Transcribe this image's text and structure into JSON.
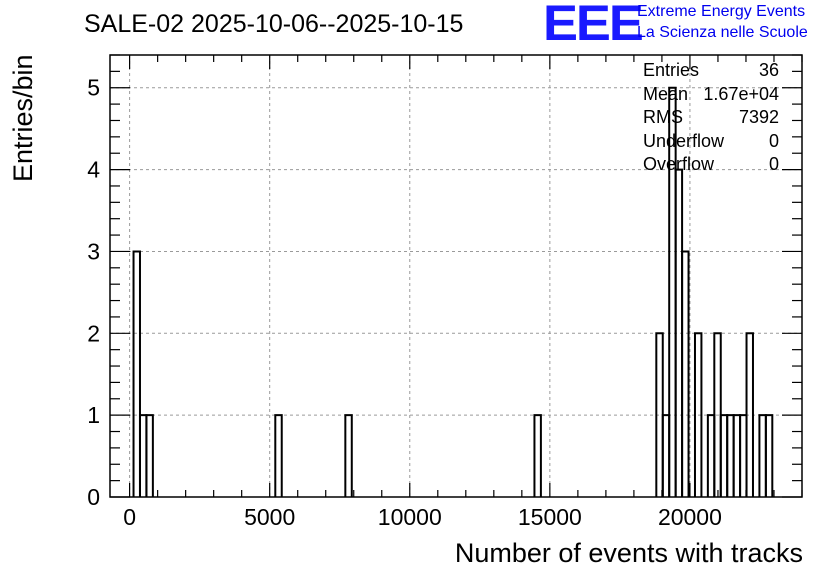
{
  "header": {
    "title": "SALE-02 2025-10-06--2025-10-15",
    "logo_text": "EEE",
    "logo_line1": "Extreme Energy Events",
    "logo_line2": "La Scienza nelle Scuole"
  },
  "stats": [
    {
      "label": "Entries",
      "value": "36"
    },
    {
      "label": "Mean",
      "value": "1.67e+04"
    },
    {
      "label": "RMS",
      "value": "7392"
    },
    {
      "label": "Underflow",
      "value": "0"
    },
    {
      "label": "Overflow",
      "value": "0"
    }
  ],
  "colors": {
    "line": "#000000",
    "grid": "#9a9a9a",
    "logo": "#1a1aff",
    "logo_text": "#0000ee"
  },
  "chart_data": {
    "type": "histogram",
    "title": "SALE-02 2025-10-06--2025-10-15",
    "xlabel": "Number of events with tracks",
    "ylabel": "Entries/bin",
    "xlim": [
      -700,
      24000
    ],
    "ylim": [
      0,
      5.4
    ],
    "bin_width": 230,
    "xticks": [
      0,
      5000,
      10000,
      15000,
      20000
    ],
    "xtick_labels": [
      "0",
      "5000",
      "10000",
      "15000",
      "20000"
    ],
    "yticks": [
      0,
      1,
      2,
      3,
      4,
      5
    ],
    "ytick_labels": [
      "0",
      "1",
      "2",
      "3",
      "4",
      "5"
    ],
    "grid": true,
    "bins": [
      {
        "x": 140,
        "count": 3
      },
      {
        "x": 370,
        "count": 1
      },
      {
        "x": 600,
        "count": 1
      },
      {
        "x": 5200,
        "count": 1
      },
      {
        "x": 7700,
        "count": 1
      },
      {
        "x": 14450,
        "count": 1
      },
      {
        "x": 18800,
        "count": 2
      },
      {
        "x": 19030,
        "count": 1
      },
      {
        "x": 19260,
        "count": 5
      },
      {
        "x": 19490,
        "count": 4
      },
      {
        "x": 19720,
        "count": 3
      },
      {
        "x": 20180,
        "count": 2
      },
      {
        "x": 20640,
        "count": 1
      },
      {
        "x": 20870,
        "count": 2
      },
      {
        "x": 21100,
        "count": 1
      },
      {
        "x": 21330,
        "count": 1
      },
      {
        "x": 21560,
        "count": 1
      },
      {
        "x": 21790,
        "count": 1
      },
      {
        "x": 22020,
        "count": 2
      },
      {
        "x": 22480,
        "count": 1
      },
      {
        "x": 22710,
        "count": 1
      }
    ]
  }
}
